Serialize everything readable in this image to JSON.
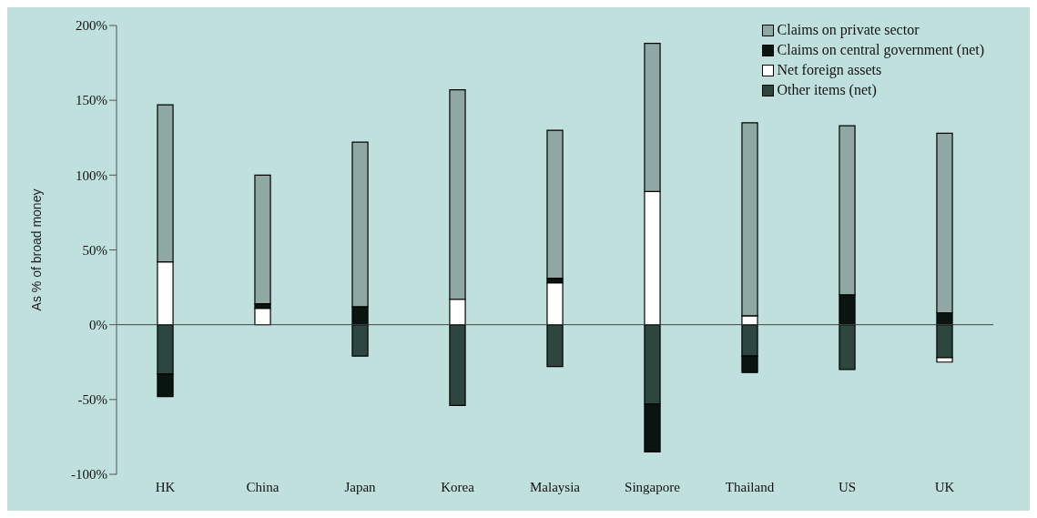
{
  "chart_data": {
    "type": "bar",
    "stacked": true,
    "ylabel": "As % of broad money",
    "categories": [
      "HK",
      "China",
      "Japan",
      "Korea",
      "Malaysia",
      "Singapore",
      "Thailand",
      "US",
      "UK"
    ],
    "series": [
      {
        "name": "Other items (net)",
        "color": "#2d4640",
        "values": [
          -33,
          0,
          -21,
          -54,
          -28,
          -53,
          -21,
          -30,
          -22
        ]
      },
      {
        "name": "Net foreign assets",
        "color": "#ffffff",
        "values": [
          42,
          11,
          0,
          17,
          28,
          89,
          6,
          0,
          -3
        ]
      },
      {
        "name": "Claims on central government (net)",
        "color": "#0a1512",
        "values": [
          -15,
          3,
          12,
          0,
          3,
          -32,
          -11,
          20,
          8
        ]
      },
      {
        "name": "Claims on private sector",
        "color": "#8fa8a4",
        "values": [
          105,
          86,
          110,
          140,
          99,
          99,
          129,
          113,
          120
        ]
      }
    ],
    "ylim": [
      -100,
      200
    ],
    "yticks": [
      {
        "value": -100,
        "label": "-100%"
      },
      {
        "value": -50,
        "label": "-50%"
      },
      {
        "value": 0,
        "label": "0%"
      },
      {
        "value": 50,
        "label": "50%"
      },
      {
        "value": 100,
        "label": "100%"
      },
      {
        "value": 150,
        "label": "150%"
      },
      {
        "value": 200,
        "label": "200%"
      }
    ],
    "legend": "top right"
  }
}
